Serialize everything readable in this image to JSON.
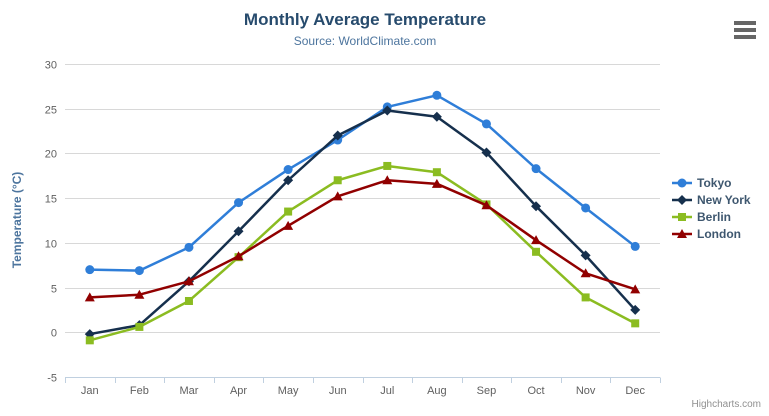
{
  "header": {
    "title": "Monthly Average Temperature",
    "subtitle": "Source: WorldClimate.com"
  },
  "toolbar": {
    "context_menu_icon": "hamburger-icon"
  },
  "credits": {
    "label": "Highcharts.com"
  },
  "styles": {
    "title_color": "#274b6d",
    "subtitle_color": "#4d759e",
    "axis_label_color": "#606060",
    "axis_title_color": "#4d759e",
    "legend_text_color": "#3E576F",
    "grid_color": "#D8D8D8",
    "axis_line_color": "#C0D0E0",
    "credits_color": "#909090",
    "background_color": "#ffffff"
  },
  "chart_data": {
    "type": "line",
    "title": "Monthly Average Temperature",
    "subtitle": "Source: WorldClimate.com",
    "xlabel": "",
    "ylabel": "Temperature (°C)",
    "ylim": [
      -5,
      30
    ],
    "ytick_step": 5,
    "ytick_labels": [
      "-5",
      "0",
      "5",
      "10",
      "15",
      "20",
      "25",
      "30"
    ],
    "grid": "horizontal",
    "legend_position": "right",
    "categories": [
      "Jan",
      "Feb",
      "Mar",
      "Apr",
      "May",
      "Jun",
      "Jul",
      "Aug",
      "Sep",
      "Oct",
      "Nov",
      "Dec"
    ],
    "series": [
      {
        "name": "Tokyo",
        "color": "#2f7ed8",
        "marker": "circle",
        "values": [
          7.0,
          6.9,
          9.5,
          14.5,
          18.2,
          21.5,
          25.2,
          26.5,
          23.3,
          18.3,
          13.9,
          9.6
        ]
      },
      {
        "name": "New York",
        "color": "#16304d",
        "marker": "diamond",
        "values": [
          -0.2,
          0.8,
          5.7,
          11.3,
          17.0,
          22.0,
          24.8,
          24.1,
          20.1,
          14.1,
          8.6,
          2.5
        ]
      },
      {
        "name": "Berlin",
        "color": "#8bbc21",
        "marker": "square",
        "values": [
          -0.9,
          0.6,
          3.5,
          8.4,
          13.5,
          17.0,
          18.6,
          17.9,
          14.3,
          9.0,
          3.9,
          1.0
        ]
      },
      {
        "name": "London",
        "color": "#910000",
        "marker": "triangle",
        "values": [
          3.9,
          4.2,
          5.7,
          8.5,
          11.9,
          15.2,
          17.0,
          16.6,
          14.2,
          10.3,
          6.6,
          4.8
        ]
      }
    ]
  }
}
